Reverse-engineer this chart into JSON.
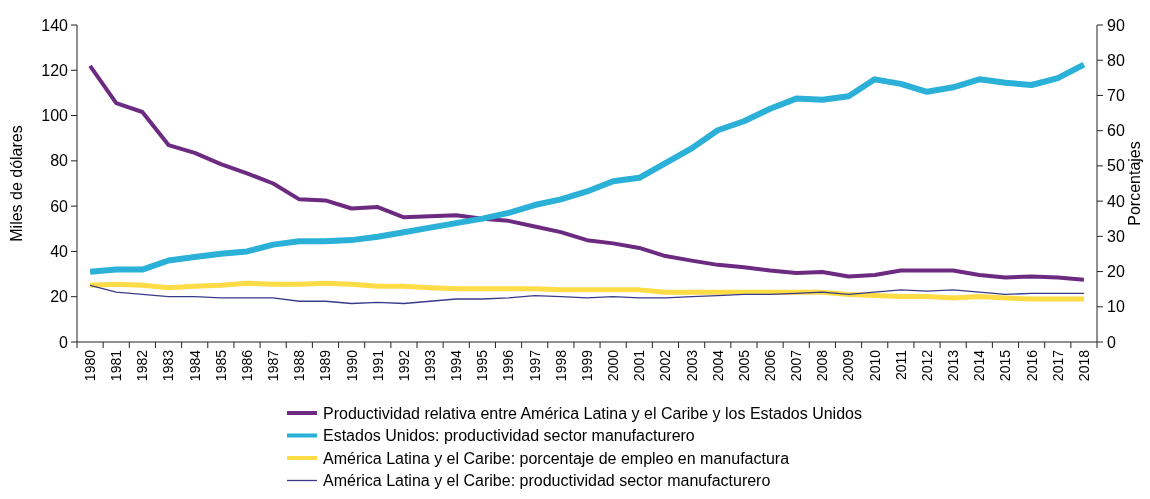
{
  "chart_data": {
    "type": "line",
    "ylabel": "Miles de dólares",
    "y2label": "Porcentajes",
    "categories": [
      "1980",
      "1981",
      "1982",
      "1983",
      "1984",
      "1985",
      "1986",
      "1987",
      "1988",
      "1989",
      "1990",
      "1991",
      "1992",
      "1993",
      "1994",
      "1995",
      "1996",
      "1997",
      "1998",
      "1999",
      "2000",
      "2001",
      "2002",
      "2003",
      "2004",
      "2005",
      "2006",
      "2007",
      "2008",
      "2009",
      "2010",
      "2011",
      "2012",
      "2013",
      "2014",
      "2015",
      "2016",
      "2017",
      "2018"
    ],
    "ylim": [
      0,
      140
    ],
    "yticks": [
      0,
      20,
      40,
      60,
      80,
      100,
      120,
      140
    ],
    "y2lim": [
      0,
      90
    ],
    "y2ticks": [
      0,
      10,
      20,
      30,
      40,
      50,
      60,
      70,
      80,
      90
    ],
    "grid": false,
    "legend": "bottom",
    "marker": "none",
    "line_style": "solid",
    "series": [
      {
        "name": "Productividad relativa entre América Latina y el Caribe y los Estados Unidos",
        "color": "#6c2b80",
        "axis": "y2",
        "values": [
          78.4,
          67.8,
          65.3,
          55.9,
          53.7,
          50.5,
          47.9,
          45,
          40.5,
          40.2,
          37.9,
          38.3,
          35.4,
          35.7,
          36,
          35,
          34.4,
          32.8,
          31.2,
          28.9,
          28,
          26.7,
          24.4,
          23.1,
          21.9,
          21.2,
          20.3,
          19.6,
          19.9,
          18.6,
          19,
          20.3,
          20.3,
          20.3,
          19,
          18.3,
          18.6,
          18.3,
          17.7
        ]
      },
      {
        "name": "Estados Unidos: productividad sector manufacturero",
        "color": "#2bb0d7",
        "values": [
          31,
          32,
          32,
          36,
          37.5,
          39,
          40,
          43,
          44.5,
          44.5,
          45,
          46.5,
          48.5,
          50.5,
          52.5,
          54.5,
          57,
          60.5,
          63,
          66.5,
          71,
          72.5,
          79,
          85.5,
          93.5,
          97.5,
          103,
          107.5,
          107,
          108.5,
          116,
          114,
          110.5,
          112.5,
          116,
          114.5,
          113.5,
          116.5,
          122.5
        ]
      },
      {
        "name": "América Latina y el Caribe: porcentaje de empleo en manufactura",
        "color": "#fddc45",
        "axis": "y2",
        "values": [
          16.1,
          16.4,
          16.1,
          15.4,
          15.8,
          16.1,
          16.7,
          16.4,
          16.4,
          16.7,
          16.4,
          15.8,
          15.8,
          15.4,
          15.1,
          15.1,
          15.1,
          15.1,
          14.8,
          14.8,
          14.8,
          14.8,
          14.1,
          14.1,
          14.1,
          14.1,
          14.1,
          14.1,
          14.1,
          13.5,
          13.2,
          12.9,
          12.9,
          12.5,
          12.9,
          12.5,
          12.2,
          12.2,
          12.2
        ]
      },
      {
        "name": "América Latina y el Caribe: productividad sector manufacturero",
        "color": "#3a3a8c",
        "values": [
          25,
          22,
          21,
          20,
          20,
          19.5,
          19.5,
          19.5,
          18,
          18,
          17,
          17.5,
          17,
          18,
          19,
          19,
          19.5,
          20.5,
          20,
          19.5,
          20,
          19.5,
          19.5,
          20,
          20.5,
          21,
          21,
          21.5,
          22,
          21,
          22,
          23,
          22.5,
          23,
          22,
          21,
          21.5,
          21.5,
          21.5
        ]
      }
    ]
  }
}
